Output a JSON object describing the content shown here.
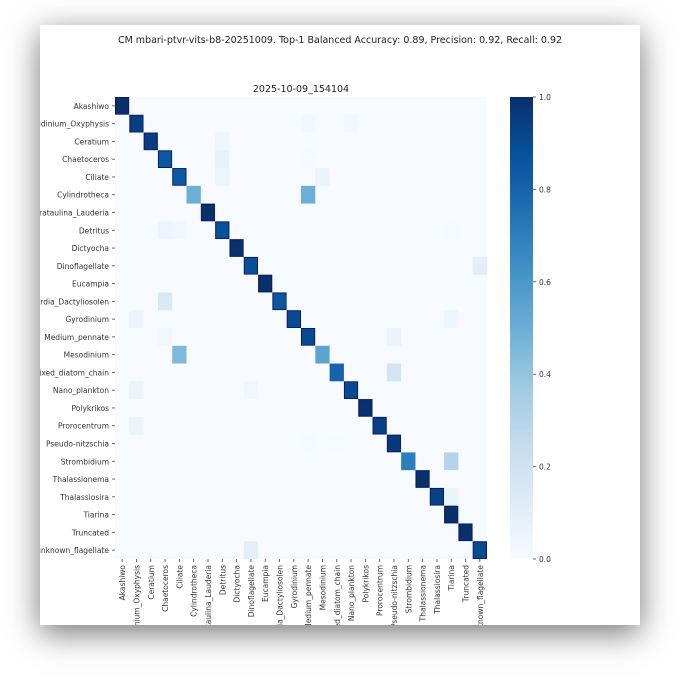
{
  "suptitle": "CM mbari-ptvr-vits-b8-20251009. Top-1 Balanced Accuracy: 0.89,  Precision: 0.92, Recall: 0.92",
  "chart_data": {
    "type": "heatmap",
    "title": "2025-10-09_154104",
    "colormap": "Blues",
    "vlim": [
      0,
      1
    ],
    "colorbar_ticks": [
      "0.0",
      "0.2",
      "0.4",
      "0.6",
      "0.8",
      "1.0"
    ],
    "labels": [
      "Akashiwo",
      "Amphidinium_Oxyphysis",
      "Ceratium",
      "Chaetoceros",
      "Ciliate",
      "Cylindrotheca",
      "Cerataulina_Lauderia",
      "Detritus",
      "Dictyocha",
      "Dinoflagellate",
      "Eucampia",
      "Guinardia_Dactyliosolen",
      "Gyrodinium",
      "Medium_pennate",
      "Mesodinium",
      "Mixed_diatom_chain",
      "Nano_plankton",
      "Polykrikos",
      "Prorocentrum",
      "Pseudo-nitzschia",
      "Strombidium",
      "Thalassionema",
      "Thalassiosira",
      "Tiarina",
      "Truncated",
      "unknown_flagellate"
    ],
    "diagonal": [
      1.0,
      0.95,
      0.95,
      0.85,
      0.85,
      0.5,
      1.0,
      0.88,
      1.0,
      0.88,
      1.0,
      0.85,
      0.9,
      0.9,
      0.55,
      0.8,
      0.9,
      1.0,
      0.94,
      0.97,
      0.7,
      1.0,
      0.93,
      1.0,
      1.0,
      0.9
    ],
    "off_diagonal": [
      {
        "row": 1,
        "col": 13,
        "value": 0.02
      },
      {
        "row": 1,
        "col": 16,
        "value": 0.02
      },
      {
        "row": 2,
        "col": 7,
        "value": 0.04
      },
      {
        "row": 3,
        "col": 7,
        "value": 0.08
      },
      {
        "row": 3,
        "col": 13,
        "value": 0.01
      },
      {
        "row": 4,
        "col": 7,
        "value": 0.05
      },
      {
        "row": 4,
        "col": 14,
        "value": 0.06
      },
      {
        "row": 5,
        "col": 13,
        "value": 0.5
      },
      {
        "row": 7,
        "col": 3,
        "value": 0.05
      },
      {
        "row": 7,
        "col": 4,
        "value": 0.03
      },
      {
        "row": 7,
        "col": 23,
        "value": 0.01
      },
      {
        "row": 9,
        "col": 25,
        "value": 0.1
      },
      {
        "row": 11,
        "col": 3,
        "value": 0.15
      },
      {
        "row": 12,
        "col": 1,
        "value": 0.05
      },
      {
        "row": 12,
        "col": 23,
        "value": 0.05
      },
      {
        "row": 13,
        "col": 3,
        "value": 0.03
      },
      {
        "row": 13,
        "col": 19,
        "value": 0.06
      },
      {
        "row": 14,
        "col": 4,
        "value": 0.45
      },
      {
        "row": 15,
        "col": 19,
        "value": 0.18
      },
      {
        "row": 16,
        "col": 1,
        "value": 0.06
      },
      {
        "row": 16,
        "col": 9,
        "value": 0.03
      },
      {
        "row": 18,
        "col": 1,
        "value": 0.06
      },
      {
        "row": 19,
        "col": 13,
        "value": 0.01
      },
      {
        "row": 19,
        "col": 15,
        "value": 0.01
      },
      {
        "row": 20,
        "col": 23,
        "value": 0.3
      },
      {
        "row": 22,
        "col": 23,
        "value": 0.06
      },
      {
        "row": 25,
        "col": 9,
        "value": 0.1
      }
    ]
  }
}
